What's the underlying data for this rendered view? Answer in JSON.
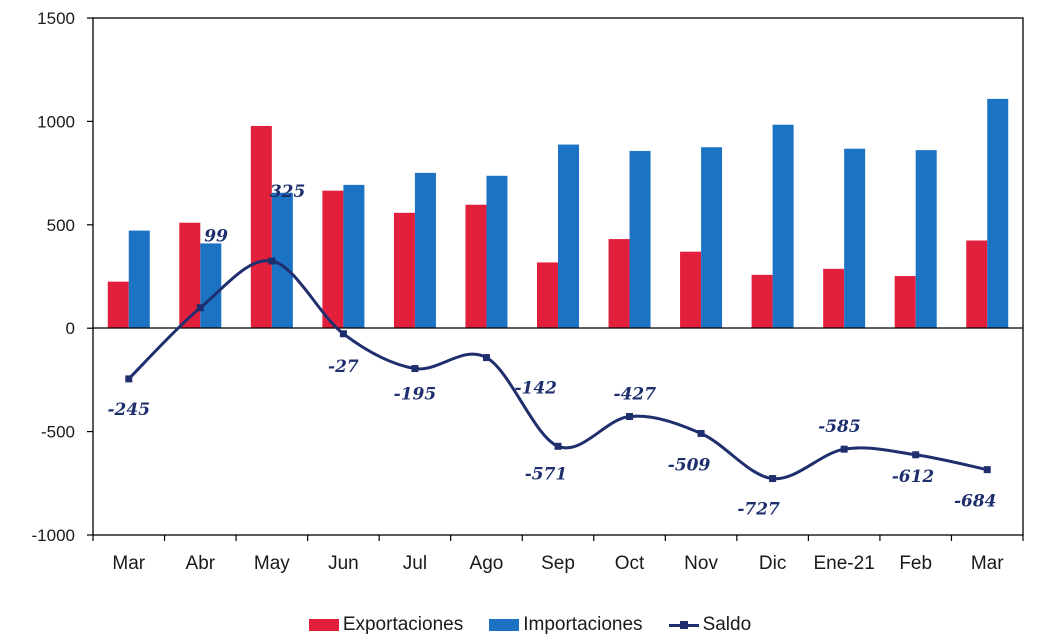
{
  "chart_data": {
    "type": "bar",
    "categories": [
      "Mar",
      "Abr",
      "May",
      "Jun",
      "Jul",
      "Ago",
      "Sep",
      "Oct",
      "Nov",
      "Dic",
      "Ene-21",
      "Feb",
      "Mar"
    ],
    "series": [
      {
        "name": "Exportaciones",
        "type": "bar",
        "color": "#e3203b",
        "values": [
          225,
          510,
          978,
          665,
          558,
          597,
          318,
          431,
          370,
          258,
          287,
          252,
          424
        ]
      },
      {
        "name": "Importaciones",
        "type": "bar",
        "color": "#1c73c4",
        "values": [
          472,
          410,
          655,
          693,
          751,
          737,
          888,
          857,
          875,
          984,
          868,
          861,
          1109
        ]
      },
      {
        "name": "Saldo",
        "type": "line",
        "color": "#1f2f6e",
        "values": [
          -245,
          99,
          325,
          -27,
          -195,
          -142,
          -571,
          -427,
          -509,
          -727,
          -585,
          -612,
          -684
        ]
      }
    ],
    "data_labels": [
      "-245",
      "99",
      "325",
      "-27",
      "-195",
      "-142",
      "-571",
      "-427",
      "-509",
      "-727",
      "-585",
      "-612",
      "-684"
    ],
    "yticks": [
      "1500",
      "1000",
      "500",
      "0",
      "-500",
      "-1000"
    ],
    "ylim": [
      -1000,
      1500
    ],
    "title": "",
    "xlabel": "",
    "ylabel": "",
    "grid": false,
    "legend_position": "bottom"
  }
}
